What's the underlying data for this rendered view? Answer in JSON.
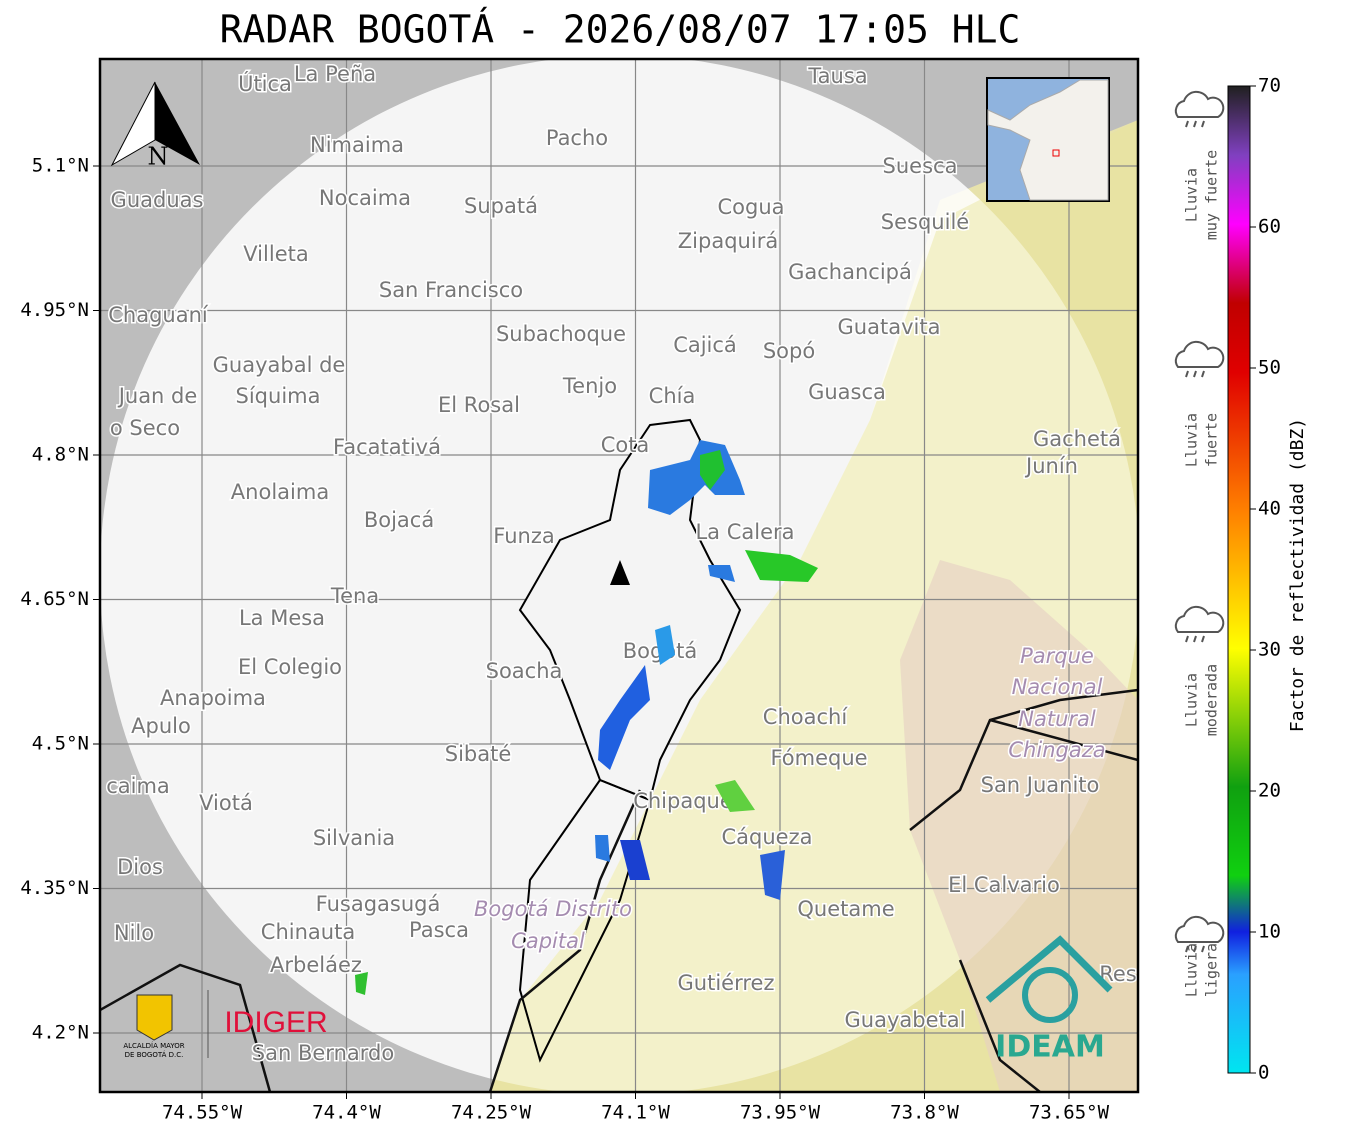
{
  "title": "RADAR BOGOTÁ - 2026/08/07 17:05 HLC",
  "map": {
    "lon_ticks": [
      {
        "value": -74.55,
        "label": "74.55°W"
      },
      {
        "value": -74.4,
        "label": "74.4°W"
      },
      {
        "value": -74.25,
        "label": "74.25°W"
      },
      {
        "value": -74.1,
        "label": "74.1°W"
      },
      {
        "value": -73.95,
        "label": "73.95°W"
      },
      {
        "value": -73.8,
        "label": "73.8°W"
      },
      {
        "value": -73.65,
        "label": "73.65°W"
      }
    ],
    "lat_ticks": [
      {
        "value": 5.1,
        "label": "5.1°N"
      },
      {
        "value": 4.95,
        "label": "4.95°N"
      },
      {
        "value": 4.8,
        "label": "4.8°N"
      },
      {
        "value": 4.65,
        "label": "4.65°N"
      },
      {
        "value": 4.5,
        "label": "4.5°N"
      },
      {
        "value": 4.35,
        "label": "4.35°N"
      },
      {
        "value": 4.2,
        "label": "4.2°N"
      }
    ],
    "north": "N",
    "places": [
      "Útica",
      "La Peña",
      "Tausa",
      "Pacho",
      "Nimaima",
      "Guaduas",
      "Nocaima",
      "Supatá",
      "Cogua",
      "Suesca",
      "Sesquilé",
      "Villeta",
      "Zipaquirá",
      "Gachancipá",
      "San Francisco",
      "Chaguaní",
      "Subachoque",
      "Cajicá",
      "Sopó",
      "Guatavita",
      "Guayabal de",
      "Síquima",
      "Juan de",
      "Tenjo",
      "El Rosal",
      "Chía",
      "Guasca",
      "o Seco",
      "Facatativá",
      "Cota",
      "Gachetá",
      "Junín",
      "Anolaima",
      "Bojacá",
      "Funza",
      "La Calera",
      "Tena",
      "La Mesa",
      "Bogotá",
      "Soacha",
      "Parque",
      "El Colegio",
      "Nacional",
      "Anapoima",
      "Natural",
      "Apulo",
      "Choachí",
      "Chingaza",
      "Sibaté",
      "Fómeque",
      "San Juanito",
      "caima",
      "Viotá",
      "Chipaque",
      "Silvania",
      "Cáqueza",
      "Dios",
      "El Calvario",
      "Fusagasugá",
      "Quetame",
      "Bogotá Distrito",
      "Nilo",
      "Chinauta",
      "Pasca",
      "Capital",
      "Arbeláez",
      "Gutiérrez",
      "Res",
      "Guayabetal",
      "San Bernardo"
    ],
    "logos": {
      "alcaldia": [
        "ALCALDÍA MAYOR",
        "DE BOGOTÁ D.C."
      ],
      "idiger": "IDIGER",
      "ideam": "IDEAM"
    }
  },
  "colorbar": {
    "label": "Factor de reflectividad (dBZ)",
    "ticks": [
      0,
      10,
      20,
      30,
      40,
      50,
      60,
      70
    ],
    "categories": [
      [
        "Lluvia",
        "muy fuerte"
      ],
      [
        "Lluvia",
        "fuerte"
      ],
      [
        "Lluvia",
        "moderada"
      ],
      [
        "Lluvia",
        "ligera"
      ]
    ]
  }
}
